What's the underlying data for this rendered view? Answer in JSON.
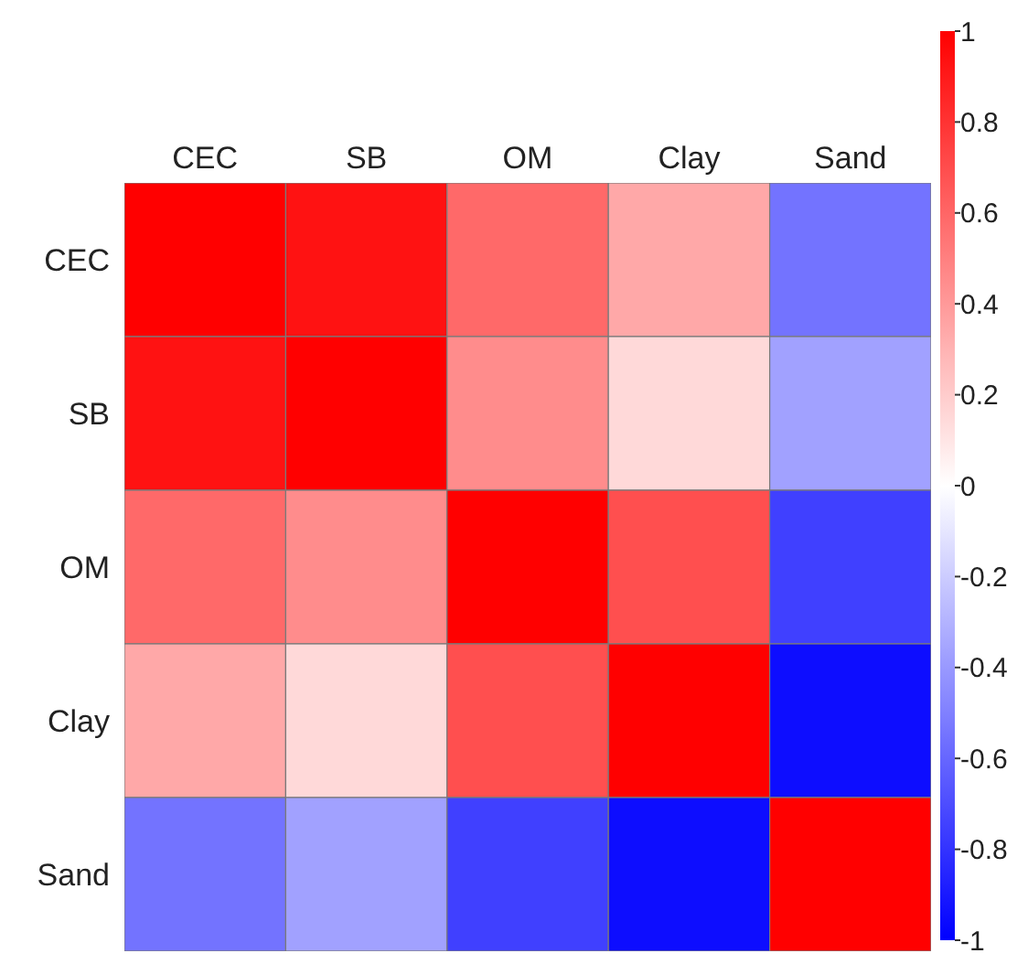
{
  "chart_data": {
    "type": "heatmap",
    "categories": [
      "CEC",
      "SB",
      "OM",
      "Clay",
      "Sand"
    ],
    "y_categories": [
      "CEC",
      "SB",
      "OM",
      "Clay",
      "Sand"
    ],
    "cells": [
      [
        1,
        0.93,
        0.59,
        0.34,
        -0.55
      ],
      [
        0.93,
        1,
        0.45,
        0.15,
        -0.37
      ],
      [
        0.59,
        0.45,
        1,
        0.69,
        -0.75
      ],
      [
        0.34,
        0.15,
        0.69,
        1,
        -0.95
      ],
      [
        -0.55,
        -0.37,
        -0.75,
        -0.95,
        1
      ]
    ],
    "clim": [
      -1,
      1
    ],
    "cticks": [
      -1,
      -0.8,
      -0.6,
      -0.4,
      -0.2,
      0,
      0.2,
      0.4,
      0.6,
      0.8,
      1
    ]
  }
}
